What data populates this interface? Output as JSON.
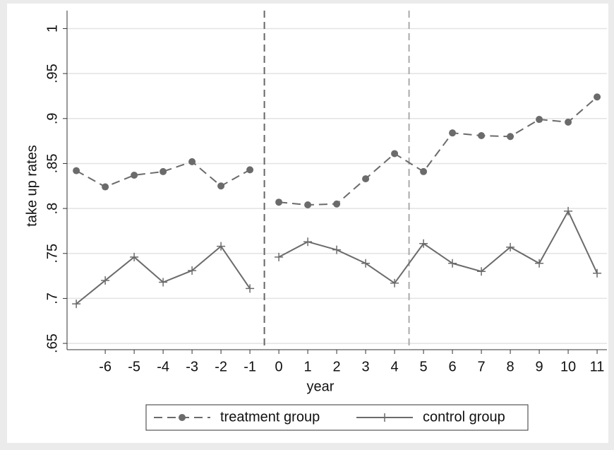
{
  "chart_data": {
    "type": "line",
    "x": [
      -7,
      -6,
      -5,
      -4,
      -3,
      -2,
      -1,
      0,
      1,
      2,
      3,
      4,
      5,
      6,
      7,
      8,
      9,
      10,
      11
    ],
    "xticks": [
      -6,
      -5,
      -4,
      -3,
      -2,
      -1,
      0,
      1,
      2,
      3,
      4,
      5,
      6,
      7,
      8,
      9,
      10,
      11
    ],
    "xlim": [
      -7.32,
      11.34
    ],
    "ylim": [
      0.643,
      1.02
    ],
    "yticks": [
      {
        "value": 0.65,
        "label": ".65"
      },
      {
        "value": 0.7,
        "label": ".7"
      },
      {
        "value": 0.75,
        "label": ".75"
      },
      {
        "value": 0.8,
        "label": ".8"
      },
      {
        "value": 0.85,
        "label": ".85"
      },
      {
        "value": 0.9,
        "label": ".9"
      },
      {
        "value": 0.95,
        "label": ".95"
      },
      {
        "value": 1,
        "label": "1"
      }
    ],
    "grid": true,
    "xlabel": "year",
    "ylabel": "take up rates",
    "xlines": [
      {
        "value": -0.5,
        "color": "#666666"
      },
      {
        "value": 4.5,
        "color": "#aaaaaa"
      }
    ],
    "legend": "bottom",
    "series": [
      {
        "name": "treatment group",
        "color": "#6b6b6b",
        "dash": true,
        "marker": "circle",
        "values": [
          0.842,
          0.824,
          0.837,
          0.841,
          0.852,
          0.825,
          0.843,
          0.807,
          0.804,
          0.805,
          0.833,
          0.861,
          0.841,
          0.884,
          0.881,
          0.88,
          0.899,
          0.896,
          0.924
        ]
      },
      {
        "name": "control group",
        "color": "#6b6b6b",
        "dash": false,
        "marker": "plus",
        "values": [
          0.694,
          0.72,
          0.746,
          0.718,
          0.731,
          0.758,
          0.711,
          0.746,
          0.763,
          0.754,
          0.739,
          0.717,
          0.761,
          0.739,
          0.73,
          0.757,
          0.739,
          0.797,
          0.728
        ]
      }
    ]
  }
}
